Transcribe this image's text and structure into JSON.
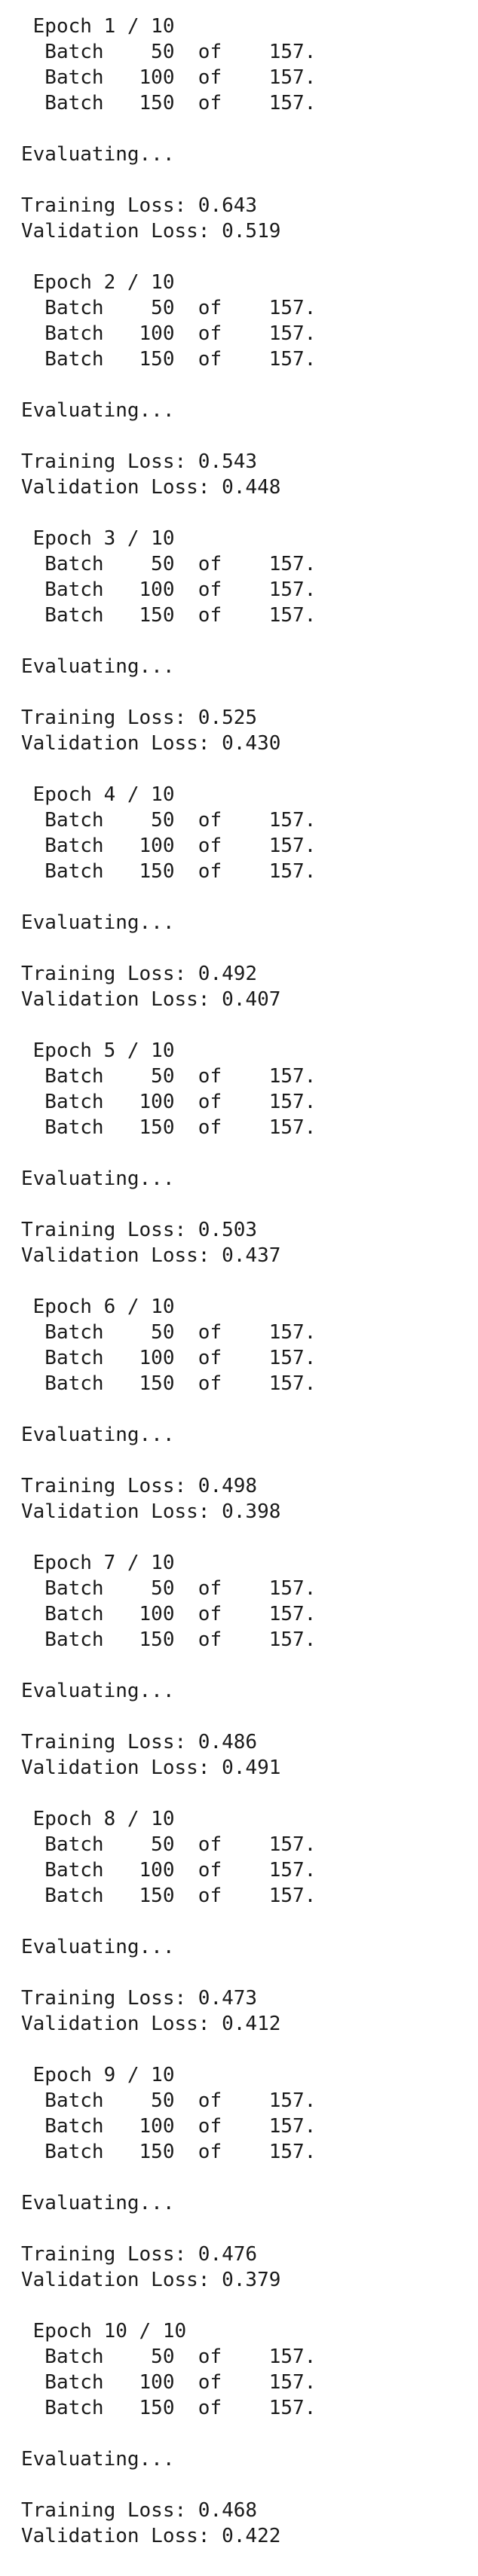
{
  "log": {
    "epochs": [
      {
        "header": " Epoch 1 / 10",
        "batches": [
          "  Batch    50  of    157.",
          "  Batch   100  of    157.",
          "  Batch   150  of    157."
        ],
        "evaluating": "Evaluating...",
        "training_loss": "Training Loss: 0.643",
        "validation_loss": "Validation Loss: 0.519"
      },
      {
        "header": " Epoch 2 / 10",
        "batches": [
          "  Batch    50  of    157.",
          "  Batch   100  of    157.",
          "  Batch   150  of    157."
        ],
        "evaluating": "Evaluating...",
        "training_loss": "Training Loss: 0.543",
        "validation_loss": "Validation Loss: 0.448"
      },
      {
        "header": " Epoch 3 / 10",
        "batches": [
          "  Batch    50  of    157.",
          "  Batch   100  of    157.",
          "  Batch   150  of    157."
        ],
        "evaluating": "Evaluating...",
        "training_loss": "Training Loss: 0.525",
        "validation_loss": "Validation Loss: 0.430"
      },
      {
        "header": " Epoch 4 / 10",
        "batches": [
          "  Batch    50  of    157.",
          "  Batch   100  of    157.",
          "  Batch   150  of    157."
        ],
        "evaluating": "Evaluating...",
        "training_loss": "Training Loss: 0.492",
        "validation_loss": "Validation Loss: 0.407"
      },
      {
        "header": " Epoch 5 / 10",
        "batches": [
          "  Batch    50  of    157.",
          "  Batch   100  of    157.",
          "  Batch   150  of    157."
        ],
        "evaluating": "Evaluating...",
        "training_loss": "Training Loss: 0.503",
        "validation_loss": "Validation Loss: 0.437"
      },
      {
        "header": " Epoch 6 / 10",
        "batches": [
          "  Batch    50  of    157.",
          "  Batch   100  of    157.",
          "  Batch   150  of    157."
        ],
        "evaluating": "Evaluating...",
        "training_loss": "Training Loss: 0.498",
        "validation_loss": "Validation Loss: 0.398"
      },
      {
        "header": " Epoch 7 / 10",
        "batches": [
          "  Batch    50  of    157.",
          "  Batch   100  of    157.",
          "  Batch   150  of    157."
        ],
        "evaluating": "Evaluating...",
        "training_loss": "Training Loss: 0.486",
        "validation_loss": "Validation Loss: 0.491"
      },
      {
        "header": " Epoch 8 / 10",
        "batches": [
          "  Batch    50  of    157.",
          "  Batch   100  of    157.",
          "  Batch   150  of    157."
        ],
        "evaluating": "Evaluating...",
        "training_loss": "Training Loss: 0.473",
        "validation_loss": "Validation Loss: 0.412"
      },
      {
        "header": " Epoch 9 / 10",
        "batches": [
          "  Batch    50  of    157.",
          "  Batch   100  of    157.",
          "  Batch   150  of    157."
        ],
        "evaluating": "Evaluating...",
        "training_loss": "Training Loss: 0.476",
        "validation_loss": "Validation Loss: 0.379"
      },
      {
        "header": " Epoch 10 / 10",
        "batches": [
          "  Batch    50  of    157.",
          "  Batch   100  of    157.",
          "  Batch   150  of    157."
        ],
        "evaluating": "Evaluating...",
        "training_loss": "Training Loss: 0.468",
        "validation_loss": "Validation Loss: 0.422"
      }
    ]
  }
}
